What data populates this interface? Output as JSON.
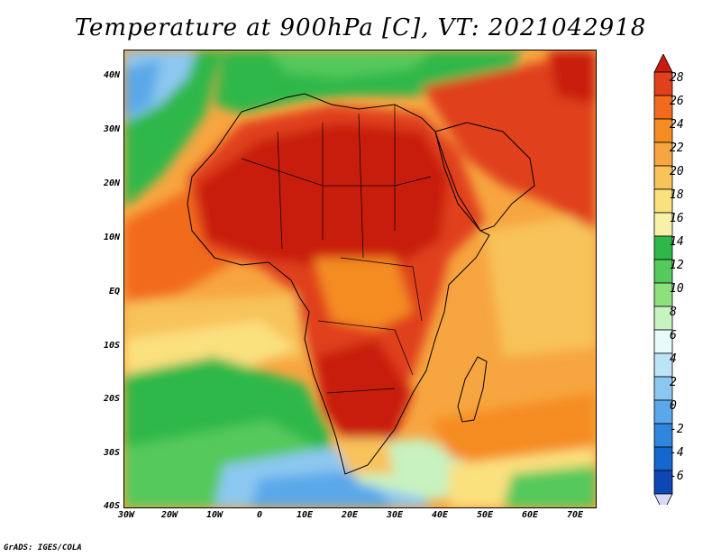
{
  "title": "Temperature at 900hPa [C], VT: 2021042918",
  "credit": "GrADS: IGES/COLA",
  "map": {
    "variable": "Temperature",
    "level": "900hPa",
    "units": "C",
    "valid_time": "2021042918",
    "lon_range": [
      -30,
      75
    ],
    "lat_range": [
      -40,
      45
    ],
    "lat_ticks": [
      "40N",
      "30N",
      "20N",
      "10N",
      "EQ",
      "10S",
      "20S",
      "30S",
      "40S"
    ],
    "lon_ticks": [
      "30W",
      "20W",
      "10W",
      "0",
      "10E",
      "20E",
      "30E",
      "40E",
      "50E",
      "60E",
      "70E"
    ]
  },
  "colorbar": {
    "labels": [
      "28",
      "26",
      "24",
      "22",
      "20",
      "18",
      "16",
      "14",
      "12",
      "10",
      "8",
      "6",
      "4",
      "2",
      "0",
      "-2",
      "-4",
      "-6"
    ],
    "colors": [
      "#c81d0e",
      "#e0401c",
      "#f26a1e",
      "#f58c22",
      "#f7a540",
      "#f8c35a",
      "#fbe07e",
      "#f6f3a8",
      "#2fb84a",
      "#55c95c",
      "#8ee07f",
      "#c8f2c0",
      "#e8fafa",
      "#bde3f7",
      "#8cc7f1",
      "#5aa8ea",
      "#2f86dc",
      "#1667cd",
      "#0d46b5",
      "#0b2a8a"
    ]
  }
}
